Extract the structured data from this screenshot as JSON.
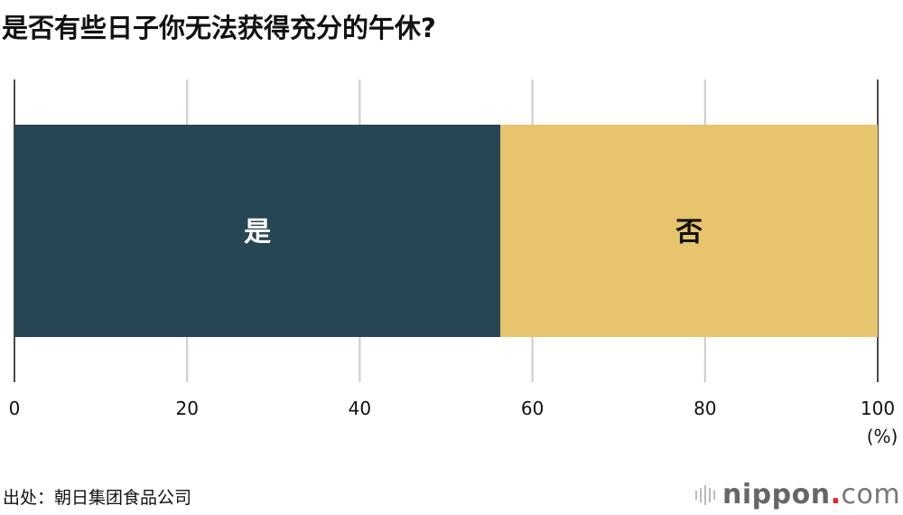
{
  "chart_data": {
    "type": "bar",
    "orientation": "horizontal-stacked",
    "title": "是否有些日子你无法获得充分的午休?",
    "categories": [
      ""
    ],
    "series": [
      {
        "name": "是",
        "values": [
          56.3
        ],
        "color": "#274653"
      },
      {
        "name": "否",
        "values": [
          43.7
        ],
        "color": "#e8c46d"
      }
    ],
    "xlim": [
      0,
      100
    ],
    "xticks": [
      "0",
      "20",
      "40",
      "60",
      "80",
      "100"
    ],
    "xunit": "(%)",
    "grid": true,
    "legend": "none (labels inside bars)"
  },
  "source": "出处：朝日集团食品公司",
  "logo": {
    "text": "nippon",
    "dot": ".",
    "suffix": "com"
  }
}
